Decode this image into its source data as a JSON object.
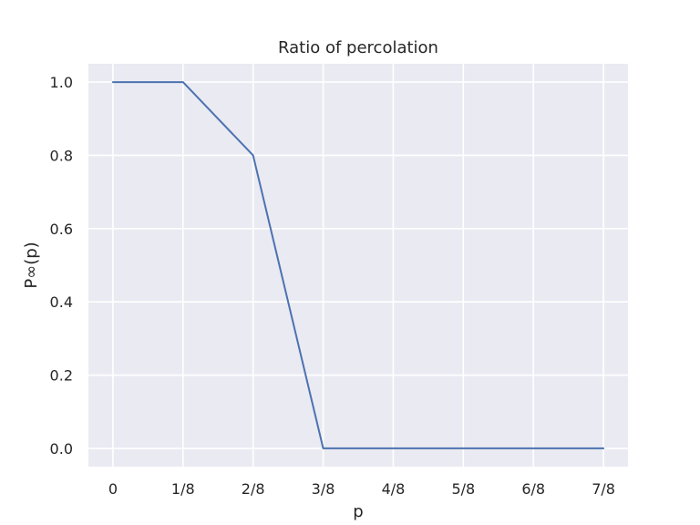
{
  "chart_data": {
    "type": "line",
    "title": "Ratio of percolation",
    "xlabel": "p",
    "ylabel": "P∞(p)",
    "x": [
      0,
      1,
      2,
      3,
      4,
      5,
      6,
      7
    ],
    "x_tick_labels": [
      "0",
      "1/8",
      "2/8",
      "3/8",
      "4/8",
      "5/8",
      "6/8",
      "7/8"
    ],
    "y_ticks": [
      "0.0",
      "0.2",
      "0.4",
      "0.6",
      "0.8",
      "1.0"
    ],
    "series": [
      {
        "values": [
          1.0,
          1.0,
          0.8,
          0.0,
          0.0,
          0.0,
          0.0,
          0.0
        ]
      }
    ],
    "xlim": [
      -0.35,
      7.35
    ],
    "ylim": [
      -0.05,
      1.05
    ],
    "grid": true,
    "colors": {
      "background": "#eaeaf2",
      "grid": "#ffffff",
      "line": "#4c72b0",
      "text": "#262626"
    }
  }
}
